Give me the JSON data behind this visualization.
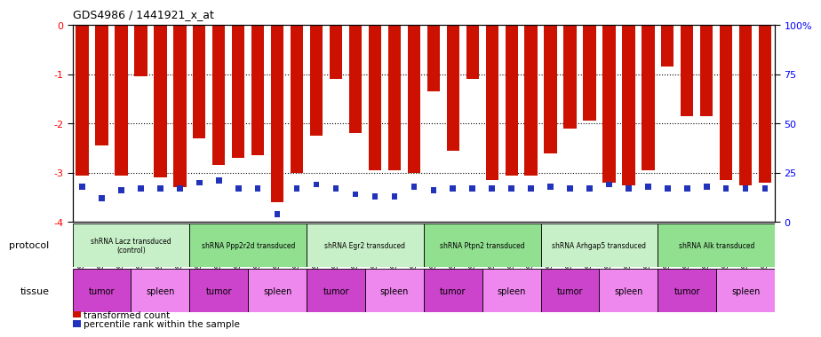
{
  "title": "GDS4986 / 1441921_x_at",
  "samples": [
    "GSM1290692",
    "GSM1290693",
    "GSM1290694",
    "GSM1290674",
    "GSM1290675",
    "GSM1290676",
    "GSM1290695",
    "GSM1290696",
    "GSM1290697",
    "GSM1290677",
    "GSM1290678",
    "GSM1290679",
    "GSM1290698",
    "GSM1290699",
    "GSM1290700",
    "GSM1290680",
    "GSM1290681",
    "GSM1290682",
    "GSM1290701",
    "GSM1290702",
    "GSM1290703",
    "GSM1290683",
    "GSM1290684",
    "GSM1290685",
    "GSM1290704",
    "GSM1290705",
    "GSM1290706",
    "GSM1290686",
    "GSM1290687",
    "GSM1290688",
    "GSM1290707",
    "GSM1290708",
    "GSM1290709",
    "GSM1290689",
    "GSM1290690",
    "GSM1290691"
  ],
  "red_values": [
    -3.05,
    -2.45,
    -3.05,
    -1.05,
    -3.1,
    -3.3,
    -2.3,
    -2.85,
    -2.7,
    -2.65,
    -3.6,
    -3.0,
    -2.25,
    -1.1,
    -2.2,
    -2.95,
    -2.95,
    -3.0,
    -1.35,
    -2.55,
    -1.1,
    -3.15,
    -3.05,
    -3.05,
    -2.6,
    -2.1,
    -1.95,
    -3.2,
    -3.25,
    -2.95,
    -0.85,
    -1.85,
    -1.85,
    -3.15,
    -3.25,
    -3.2
  ],
  "blue_percentile": [
    18,
    12,
    16,
    17,
    17,
    17,
    20,
    21,
    17,
    17,
    4,
    17,
    19,
    17,
    14,
    13,
    13,
    18,
    16,
    17,
    17,
    17,
    17,
    17,
    18,
    17,
    17,
    19,
    17,
    18,
    17,
    17,
    18,
    17,
    17,
    17
  ],
  "protocols": [
    {
      "label": "shRNA Lacz transduced\n(control)",
      "start": 0,
      "end": 6,
      "color": "#c8f0c8"
    },
    {
      "label": "shRNA Ppp2r2d transduced",
      "start": 6,
      "end": 12,
      "color": "#90e090"
    },
    {
      "label": "shRNA Egr2 transduced",
      "start": 12,
      "end": 18,
      "color": "#c8f0c8"
    },
    {
      "label": "shRNA Ptpn2 transduced",
      "start": 18,
      "end": 24,
      "color": "#90e090"
    },
    {
      "label": "shRNA Arhgap5 transduced",
      "start": 24,
      "end": 30,
      "color": "#c8f0c8"
    },
    {
      "label": "shRNA Alk transduced",
      "start": 30,
      "end": 36,
      "color": "#90e090"
    }
  ],
  "tissues": [
    {
      "label": "tumor",
      "start": 0,
      "end": 3
    },
    {
      "label": "spleen",
      "start": 3,
      "end": 6
    },
    {
      "label": "tumor",
      "start": 6,
      "end": 9
    },
    {
      "label": "spleen",
      "start": 9,
      "end": 12
    },
    {
      "label": "tumor",
      "start": 12,
      "end": 15
    },
    {
      "label": "spleen",
      "start": 15,
      "end": 18
    },
    {
      "label": "tumor",
      "start": 18,
      "end": 21
    },
    {
      "label": "spleen",
      "start": 21,
      "end": 24
    },
    {
      "label": "tumor",
      "start": 24,
      "end": 27
    },
    {
      "label": "spleen",
      "start": 27,
      "end": 30
    },
    {
      "label": "tumor",
      "start": 30,
      "end": 33
    },
    {
      "label": "spleen",
      "start": 33,
      "end": 36
    }
  ],
  "tumor_color": "#cc44cc",
  "spleen_color": "#ee88ee",
  "ylim": [
    -4.0,
    0.0
  ],
  "yticks_left": [
    0,
    -1,
    -2,
    -3,
    -4
  ],
  "ytick_labels_left": [
    "0",
    "-1",
    "-2",
    "-3",
    "-4"
  ],
  "ytick_labels_right": [
    "100%",
    "75",
    "50",
    "25",
    "0"
  ],
  "bar_color": "#cc1100",
  "blue_color": "#2233bb",
  "label_protocol": "protocol",
  "label_tissue": "tissue",
  "legend_red": "transformed count",
  "legend_blue": "percentile rank within the sample"
}
